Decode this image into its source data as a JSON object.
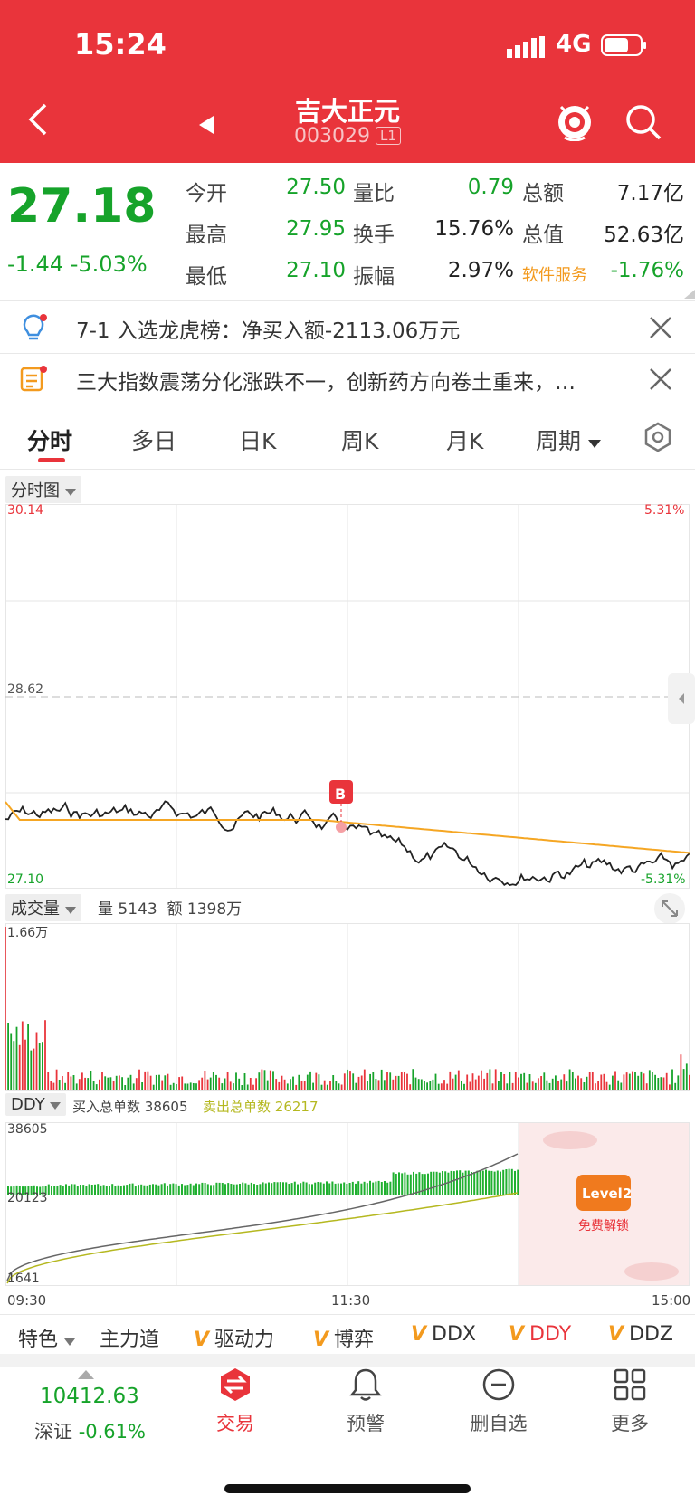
{
  "status_bar": {
    "time": "15:24",
    "network": "4G"
  },
  "header": {
    "stock_name": "吉大正元",
    "stock_code": "003029",
    "level_badge": "L1"
  },
  "quote": {
    "price": "27.18",
    "change": "-1.44",
    "change_pct": "-5.03%",
    "fields": [
      {
        "label": "今开",
        "value": "27.50",
        "color": "g"
      },
      {
        "label": "量比",
        "value": "0.79",
        "color": "g"
      },
      {
        "label": "总额",
        "value": "7.17亿",
        "color": "k"
      },
      {
        "label": "最高",
        "value": "27.95",
        "color": "g"
      },
      {
        "label": "换手",
        "value": "15.76%",
        "color": "k"
      },
      {
        "label": "总值",
        "value": "52.63亿",
        "color": "k"
      },
      {
        "label": "最低",
        "value": "27.10",
        "color": "g"
      },
      {
        "label": "振幅",
        "value": "2.97%",
        "color": "k"
      },
      {
        "label": "软件服务",
        "value": "-1.76%",
        "color": "g"
      }
    ]
  },
  "news": [
    {
      "icon": "lightbulb-icon",
      "text": "7-1 入选龙虎榜：净买入额-2113.06万元"
    },
    {
      "icon": "note-icon",
      "text": "三大指数震荡分化涨跌不一，创新药方向卷土重来，…"
    }
  ],
  "tabs": [
    "分时",
    "多日",
    "日K",
    "周K",
    "月K",
    "周期"
  ],
  "intraday": {
    "selector_label": "分时图",
    "price_max": "30.14",
    "price_mid": "28.62",
    "price_min": "27.10",
    "pct_max": "5.31%",
    "pct_min": "-5.31%",
    "marker_label": "B"
  },
  "volume": {
    "selector_label": "成交量",
    "vol_label": "量",
    "vol_value": "5143",
    "amt_label": "额",
    "amt_value": "1398万",
    "max_label": "1.66万"
  },
  "ddy": {
    "selector_label": "DDY",
    "buy_label": "买入总单数",
    "buy_value": "38605",
    "sell_label": "卖出总单数",
    "sell_value": "26217",
    "axis_max": "38605",
    "axis_mid": "20123",
    "axis_min": "1641",
    "lock_badge": "Level2",
    "lock_text": "免费解锁"
  },
  "time_axis": [
    "09:30",
    "11:30",
    "15:00"
  ],
  "indicators": {
    "menu_label": "特色",
    "items": [
      "主力道",
      "驱动力",
      "博弈",
      "DDX",
      "DDY",
      "DDZ"
    ]
  },
  "bottom_nav": {
    "index_value": "10412.63",
    "index_name": "深证",
    "index_change": "-0.61%",
    "items": [
      "交易",
      "预警",
      "删自选",
      "更多"
    ]
  },
  "colors": {
    "brand_red": "#e9343b",
    "down_green": "#16a32a",
    "avg_line": "#f5a623",
    "ddy_line": "#b5b820"
  }
}
